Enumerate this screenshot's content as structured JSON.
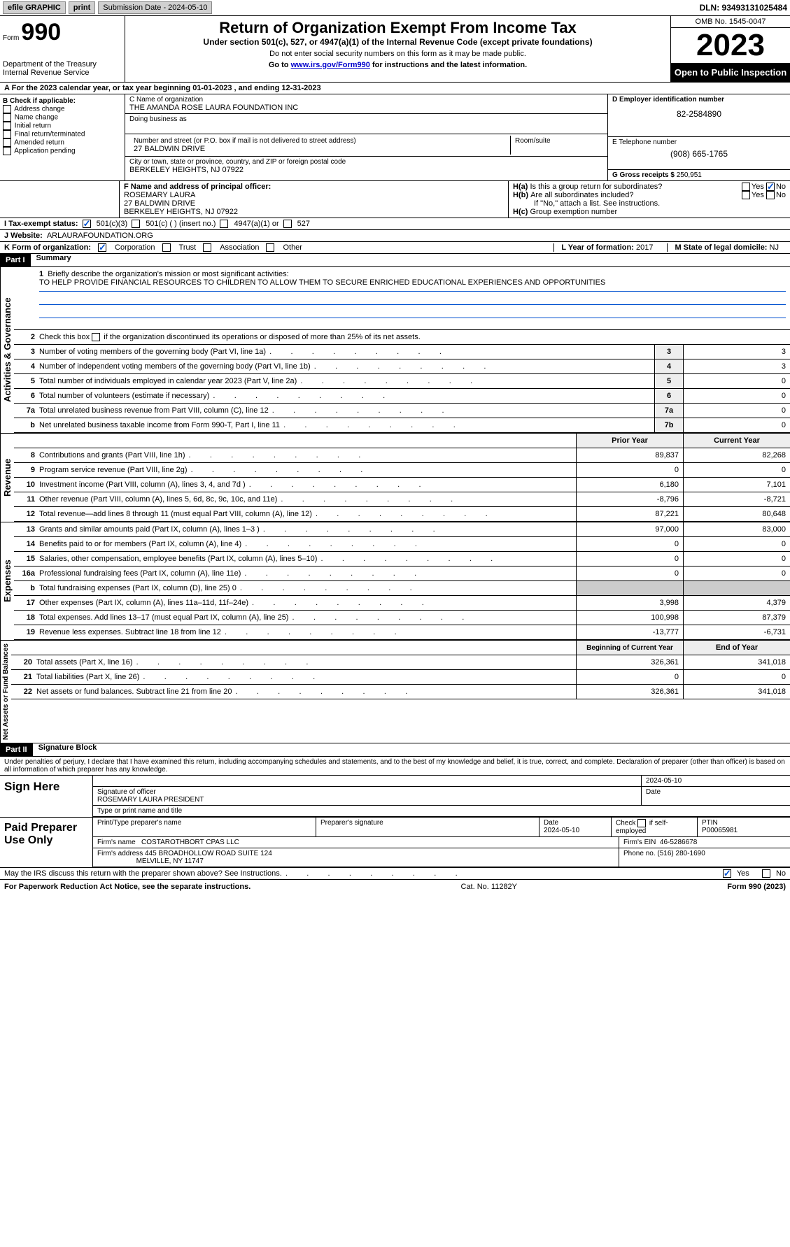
{
  "topbar": {
    "efile": "efile GRAPHIC",
    "print": "print",
    "submission": "Submission Date - 2024-05-10",
    "dln": "DLN: 93493131025484"
  },
  "header": {
    "form_label": "Form",
    "form_number": "990",
    "dept": "Department of the Treasury",
    "irs": "Internal Revenue Service",
    "title": "Return of Organization Exempt From Income Tax",
    "subtitle": "Under section 501(c), 527, or 4947(a)(1) of the Internal Revenue Code (except private foundations)",
    "note1": "Do not enter social security numbers on this form as it may be made public.",
    "note2_pre": "Go to ",
    "note2_link": "www.irs.gov/Form990",
    "note2_post": " for instructions and the latest information.",
    "omb": "OMB No. 1545-0047",
    "year": "2023",
    "open_public": "Open to Public Inspection"
  },
  "row_a": "For the 2023 calendar year, or tax year beginning 01-01-2023   , and ending 12-31-2023",
  "box_b": {
    "header": "B Check if applicable:",
    "items": [
      "Address change",
      "Name change",
      "Initial return",
      "Final return/terminated",
      "Amended return",
      "Application pending"
    ]
  },
  "box_c": {
    "name_lbl": "C Name of organization",
    "name": "THE AMANDA ROSE LAURA FOUNDATION INC",
    "dba_lbl": "Doing business as",
    "addr_lbl": "Number and street (or P.O. box if mail is not delivered to street address)",
    "addr": "27 BALDWIN DRIVE",
    "room_lbl": "Room/suite",
    "city_lbl": "City or town, state or province, country, and ZIP or foreign postal code",
    "city": "BERKELEY HEIGHTS, NJ  07922"
  },
  "box_d": {
    "ein_lbl": "D Employer identification number",
    "ein": "82-2584890",
    "phone_lbl": "E Telephone number",
    "phone": "(908) 665-1765",
    "gross_lbl": "G Gross receipts $",
    "gross": "250,951"
  },
  "box_f": {
    "lbl": "F Name and address of principal officer:",
    "name": "ROSEMARY LAURA",
    "addr1": "27 BALDWIN DRIVE",
    "addr2": "BERKELEY HEIGHTS, NJ  07922"
  },
  "box_h": {
    "ha": "Is this a group return for subordinates?",
    "hb": "Are all subordinates included?",
    "hb_note": "If \"No,\" attach a list. See instructions.",
    "hc": "Group exemption number",
    "yes": "Yes",
    "no": "No"
  },
  "tax_status": {
    "lbl": "I     Tax-exempt status:",
    "opt1": "501(c)(3)",
    "opt2": "501(c) (  ) (insert no.)",
    "opt3": "4947(a)(1) or",
    "opt4": "527"
  },
  "website": {
    "lbl": "J     Website:",
    "val": "ARLAURAFOUNDATION.ORG"
  },
  "box_k": {
    "lbl": "K Form of organization:",
    "opts": [
      "Corporation",
      "Trust",
      "Association",
      "Other"
    ]
  },
  "box_l": {
    "lbl": "L Year of formation:",
    "val": "2017"
  },
  "box_m": {
    "lbl": "M State of legal domicile:",
    "val": "NJ"
  },
  "part1": {
    "header": "Part I",
    "title": "Summary",
    "tab_ag": "Activities & Governance",
    "tab_rev": "Revenue",
    "tab_exp": "Expenses",
    "tab_na": "Net Assets or Fund Balances",
    "line1_lbl": "Briefly describe the organization's mission or most significant activities:",
    "line1_val": "TO HELP PROVIDE FINANCIAL RESOURCES TO CHILDREN TO ALLOW THEM TO SECURE ENRICHED EDUCATIONAL EXPERIENCES AND OPPORTUNITIES",
    "line2": "Check this box        if the organization discontinued its operations or disposed of more than 25% of its net assets.",
    "lines_ag": [
      {
        "n": "3",
        "d": "Number of voting members of the governing body (Part VI, line 1a)",
        "b": "3",
        "v": "3"
      },
      {
        "n": "4",
        "d": "Number of independent voting members of the governing body (Part VI, line 1b)",
        "b": "4",
        "v": "3"
      },
      {
        "n": "5",
        "d": "Total number of individuals employed in calendar year 2023 (Part V, line 2a)",
        "b": "5",
        "v": "0"
      },
      {
        "n": "6",
        "d": "Total number of volunteers (estimate if necessary)",
        "b": "6",
        "v": "0"
      },
      {
        "n": "7a",
        "d": "Total unrelated business revenue from Part VIII, column (C), line 12",
        "b": "7a",
        "v": "0"
      },
      {
        "n": "b",
        "d": "Net unrelated business taxable income from Form 990-T, Part I, line 11",
        "b": "7b",
        "v": "0"
      }
    ],
    "hdr_prior": "Prior Year",
    "hdr_current": "Current Year",
    "lines_rev": [
      {
        "n": "8",
        "d": "Contributions and grants (Part VIII, line 1h)",
        "p": "89,837",
        "c": "82,268"
      },
      {
        "n": "9",
        "d": "Program service revenue (Part VIII, line 2g)",
        "p": "0",
        "c": "0"
      },
      {
        "n": "10",
        "d": "Investment income (Part VIII, column (A), lines 3, 4, and 7d )",
        "p": "6,180",
        "c": "7,101"
      },
      {
        "n": "11",
        "d": "Other revenue (Part VIII, column (A), lines 5, 6d, 8c, 9c, 10c, and 11e)",
        "p": "-8,796",
        "c": "-8,721"
      },
      {
        "n": "12",
        "d": "Total revenue—add lines 8 through 11 (must equal Part VIII, column (A), line 12)",
        "p": "87,221",
        "c": "80,648"
      }
    ],
    "lines_exp": [
      {
        "n": "13",
        "d": "Grants and similar amounts paid (Part IX, column (A), lines 1–3 )",
        "p": "97,000",
        "c": "83,000"
      },
      {
        "n": "14",
        "d": "Benefits paid to or for members (Part IX, column (A), line 4)",
        "p": "0",
        "c": "0"
      },
      {
        "n": "15",
        "d": "Salaries, other compensation, employee benefits (Part IX, column (A), lines 5–10)",
        "p": "0",
        "c": "0"
      },
      {
        "n": "16a",
        "d": "Professional fundraising fees (Part IX, column (A), line 11e)",
        "p": "0",
        "c": "0"
      },
      {
        "n": "b",
        "d": "Total fundraising expenses (Part IX, column (D), line 25) 0",
        "p": "",
        "c": "",
        "shade": true
      },
      {
        "n": "17",
        "d": "Other expenses (Part IX, column (A), lines 11a–11d, 11f–24e)",
        "p": "3,998",
        "c": "4,379"
      },
      {
        "n": "18",
        "d": "Total expenses. Add lines 13–17 (must equal Part IX, column (A), line 25)",
        "p": "100,998",
        "c": "87,379"
      },
      {
        "n": "19",
        "d": "Revenue less expenses. Subtract line 18 from line 12",
        "p": "-13,777",
        "c": "-6,731"
      }
    ],
    "hdr_boy": "Beginning of Current Year",
    "hdr_eoy": "End of Year",
    "lines_na": [
      {
        "n": "20",
        "d": "Total assets (Part X, line 16)",
        "p": "326,361",
        "c": "341,018"
      },
      {
        "n": "21",
        "d": "Total liabilities (Part X, line 26)",
        "p": "0",
        "c": "0"
      },
      {
        "n": "22",
        "d": "Net assets or fund balances. Subtract line 21 from line 20",
        "p": "326,361",
        "c": "341,018"
      }
    ]
  },
  "part2": {
    "header": "Part II",
    "title": "Signature Block",
    "declaration": "Under penalties of perjury, I declare that I have examined this return, including accompanying schedules and statements, and to the best of my knowledge and belief, it is true, correct, and complete. Declaration of preparer (other than officer) is based on all information of which preparer has any knowledge."
  },
  "sign_here": {
    "lbl": "Sign Here",
    "sig_lbl": "Signature of officer",
    "date": "2024-05-10",
    "date_lbl": "Date",
    "name": "ROSEMARY LAURA  PRESIDENT",
    "name_lbl": "Type or print name and title"
  },
  "paid_prep": {
    "lbl": "Paid Preparer Use Only",
    "col1": "Print/Type preparer's name",
    "col2": "Preparer's signature",
    "col3_lbl": "Date",
    "col3": "2024-05-10",
    "col4": "Check         if self-employed",
    "col5_lbl": "PTIN",
    "col5": "P00065981",
    "firm_name_lbl": "Firm's name",
    "firm_name": "COSTAROTHBORT CPAS LLC",
    "firm_ein_lbl": "Firm's EIN",
    "firm_ein": "46-5286678",
    "firm_addr_lbl": "Firm's address",
    "firm_addr1": "445 BROADHOLLOW ROAD SUITE 124",
    "firm_addr2": "MELVILLE, NY  11747",
    "phone_lbl": "Phone no.",
    "phone": "(516) 280-1690"
  },
  "discuss": {
    "q": "May the IRS discuss this return with the preparer shown above? See Instructions.",
    "yes": "Yes",
    "no": "No"
  },
  "footer": {
    "left": "For Paperwork Reduction Act Notice, see the separate instructions.",
    "mid": "Cat. No. 11282Y",
    "right": "Form 990 (2023)"
  }
}
